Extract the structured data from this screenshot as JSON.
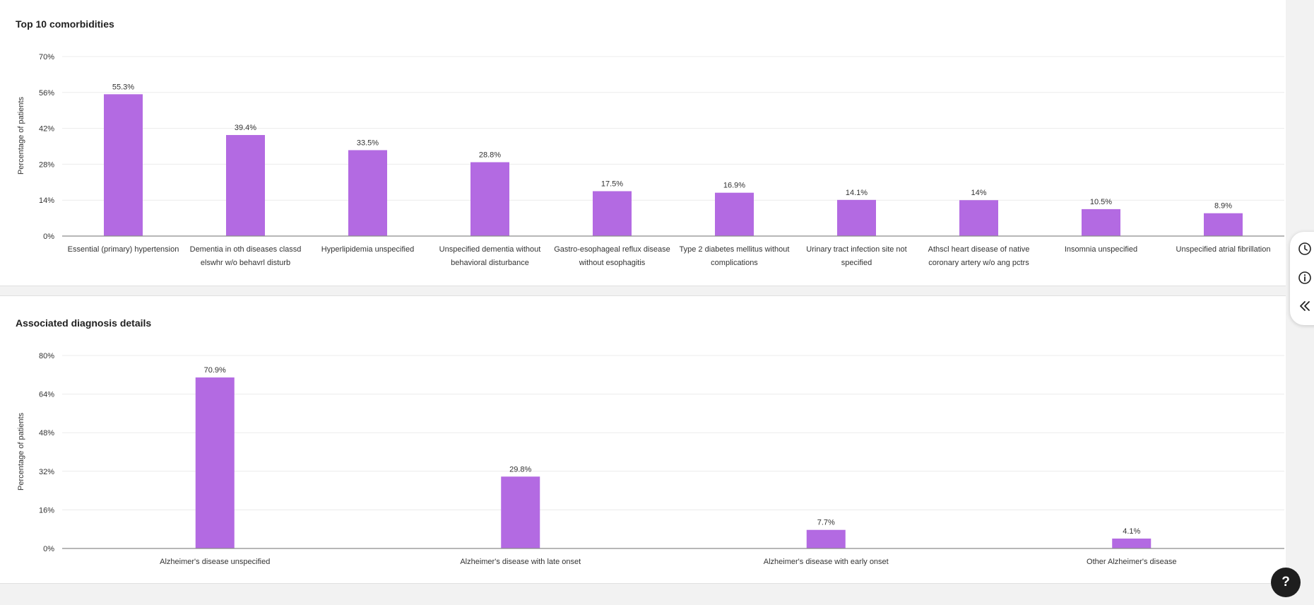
{
  "colors": {
    "bar": "#b36ae2",
    "grid": "#ececec",
    "axis": "#8c8c8c",
    "text": "#333333"
  },
  "icons": {
    "history": "clock-icon",
    "info": "info-icon",
    "collapse": "double-chevron-left-icon",
    "help": "question-icon"
  },
  "help_button": {
    "label": "?"
  },
  "chart_data": [
    {
      "type": "bar",
      "title": "Top 10 comorbidities",
      "ylabel": "Percentage of patients",
      "xlabel": "",
      "ylim": [
        0,
        70
      ],
      "yticks": [
        "0%",
        "14%",
        "28%",
        "42%",
        "56%",
        "70%"
      ],
      "grid": true,
      "categories": [
        [
          "Essential (primary) hypertension"
        ],
        [
          "Dementia in oth diseases classd",
          "elswhr w/o behavrl disturb"
        ],
        [
          "Hyperlipidemia unspecified"
        ],
        [
          "Unspecified dementia without",
          "behavioral disturbance"
        ],
        [
          "Gastro-esophageal reflux disease",
          "without esophagitis"
        ],
        [
          "Type 2 diabetes mellitus without",
          "complications"
        ],
        [
          "Urinary tract infection site not",
          "specified"
        ],
        [
          "Athscl heart disease of native",
          "coronary artery w/o ang pctrs"
        ],
        [
          "Insomnia unspecified"
        ],
        [
          "Unspecified atrial fibrillation"
        ]
      ],
      "values": [
        55.3,
        39.4,
        33.5,
        28.8,
        17.5,
        16.9,
        14.1,
        14,
        10.5,
        8.9
      ],
      "data_labels": [
        "55.3%",
        "39.4%",
        "33.5%",
        "28.8%",
        "17.5%",
        "16.9%",
        "14.1%",
        "14%",
        "10.5%",
        "8.9%"
      ]
    },
    {
      "type": "bar",
      "title": "Associated diagnosis details",
      "ylabel": "Percentage of patients",
      "xlabel": "",
      "ylim": [
        0,
        80
      ],
      "yticks": [
        "0%",
        "16%",
        "32%",
        "48%",
        "64%",
        "80%"
      ],
      "grid": true,
      "categories": [
        [
          "Alzheimer's disease unspecified"
        ],
        [
          "Alzheimer's disease with late onset"
        ],
        [
          "Alzheimer's disease with early onset"
        ],
        [
          "Other Alzheimer's disease"
        ]
      ],
      "values": [
        70.9,
        29.8,
        7.7,
        4.1
      ],
      "data_labels": [
        "70.9%",
        "29.8%",
        "7.7%",
        "4.1%"
      ]
    }
  ]
}
